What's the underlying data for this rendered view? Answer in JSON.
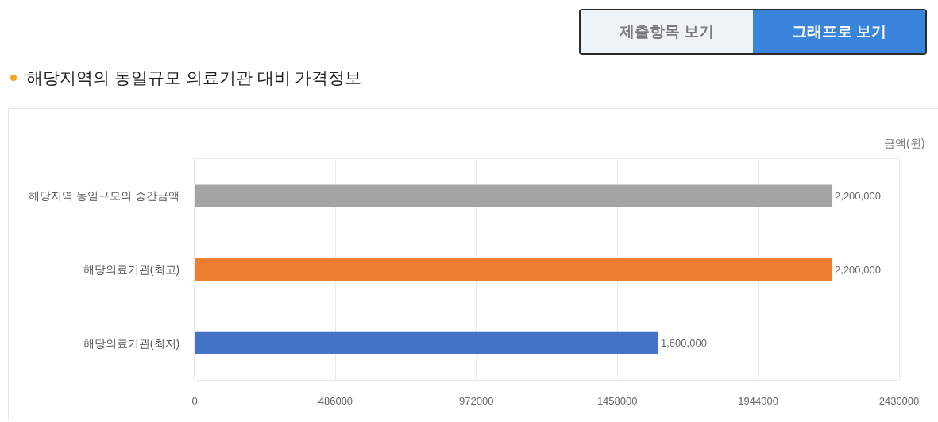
{
  "chart_data": {
    "type": "bar",
    "orientation": "horizontal",
    "title": "해당지역의 동일규모 의료기관 대비 가격정보",
    "xlabel": "금액(원)",
    "categories": [
      "해당지역 동일규모의 중간금액",
      "해당의료기관(최고)",
      "해당의료기관(최저)"
    ],
    "values": [
      2200000,
      2200000,
      1600000
    ],
    "colors": [
      "#a5a5a5",
      "#ed7d31",
      "#4472c4"
    ],
    "value_labels": [
      "2,200,000",
      "2,200,000",
      "1,600,000"
    ],
    "xlim": [
      0,
      2430000
    ],
    "xticks": [
      0,
      486000,
      972000,
      1458000,
      1944000,
      2430000
    ],
    "grid": "x",
    "annotations": [
      "제출항목 보기",
      "그래프로 보기"
    ]
  }
}
